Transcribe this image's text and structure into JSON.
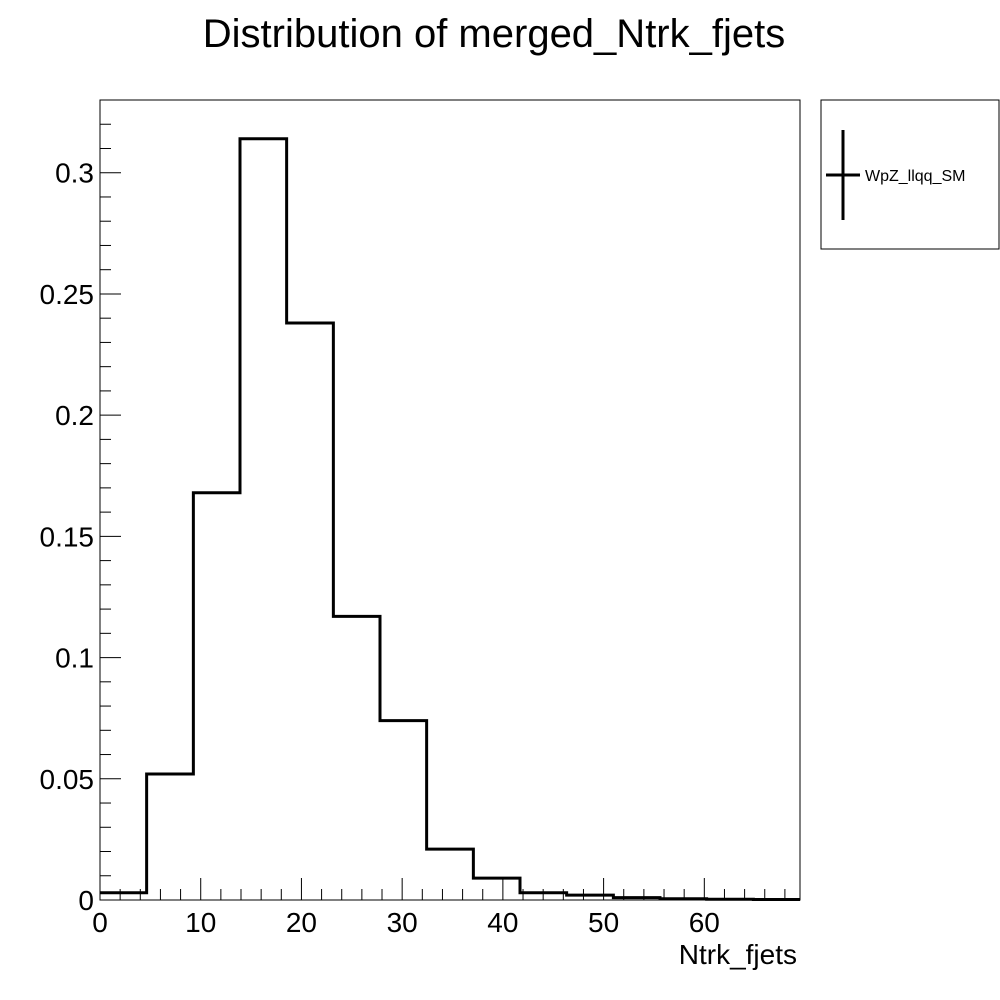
{
  "chart_data": {
    "type": "bar",
    "style": "step-histogram",
    "title": "Distribution of merged_Ntrk_fjets",
    "xlabel": "Ntrk_fjets",
    "ylabel": "",
    "xlim": [
      0,
      69.5
    ],
    "ylim": [
      0,
      0.33
    ],
    "x_ticks": [
      0,
      10,
      20,
      30,
      40,
      50,
      60
    ],
    "y_ticks": [
      0,
      0.05,
      0.1,
      0.15,
      0.2,
      0.25,
      0.3
    ],
    "x_tick_labels": [
      "0",
      "10",
      "20",
      "30",
      "40",
      "50",
      "60"
    ],
    "y_tick_labels": [
      "0",
      "0.05",
      "0.1",
      "0.15",
      "0.2",
      "0.25",
      "0.3"
    ],
    "bin_edges": [
      0,
      4.63,
      9.27,
      13.9,
      18.53,
      23.17,
      27.8,
      32.43,
      37.07,
      41.7,
      46.33,
      50.97,
      55.6,
      60.23,
      64.87,
      69.5
    ],
    "series": [
      {
        "name": "WpZ_llqq_SM",
        "color": "#000000",
        "values": [
          0.003,
          0.052,
          0.168,
          0.314,
          0.238,
          0.117,
          0.074,
          0.021,
          0.009,
          0.003,
          0.002,
          0.001,
          0.0005,
          0.0003,
          0.0002
        ]
      }
    ],
    "grid": false,
    "legend": {
      "placement": "top-right outside",
      "entries": [
        "WpZ_llqq_SM"
      ]
    }
  }
}
